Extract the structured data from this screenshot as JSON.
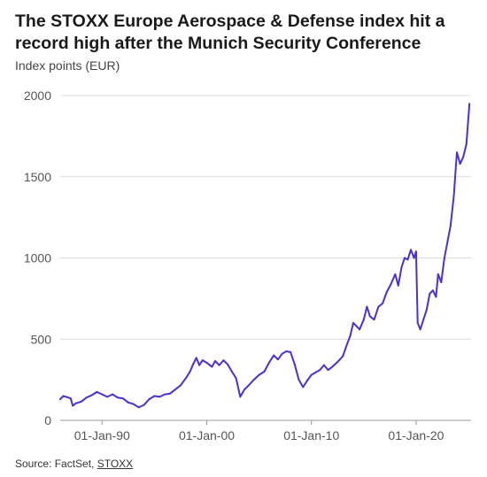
{
  "chart_data": {
    "type": "line",
    "title": "The STOXX Europe Aerospace & Defense index hit a record high after the Munich Security Conference",
    "ylabel": "Index points (EUR)",
    "xlabel": "",
    "ylim": [
      0,
      2000
    ],
    "y_ticks": [
      "0",
      "500",
      "1000",
      "1500",
      "2000"
    ],
    "x_ticks": [
      {
        "label": "01-Jan-90",
        "year": 1990
      },
      {
        "label": "01-Jan-00",
        "year": 2000
      },
      {
        "label": "01-Jan-10",
        "year": 2010
      },
      {
        "label": "01-Jan-20",
        "year": 2020
      }
    ],
    "grid": "horizontal",
    "line_color": "#4a30d6",
    "series": [
      {
        "points": [
          [
            1986.0,
            130
          ],
          [
            1986.3,
            150
          ],
          [
            1986.7,
            142
          ],
          [
            1987.0,
            135
          ],
          [
            1987.2,
            90
          ],
          [
            1987.5,
            105
          ],
          [
            1988.0,
            115
          ],
          [
            1988.5,
            140
          ],
          [
            1989.0,
            155
          ],
          [
            1989.5,
            175
          ],
          [
            1990.0,
            160
          ],
          [
            1990.5,
            145
          ],
          [
            1991.0,
            160
          ],
          [
            1991.5,
            140
          ],
          [
            1992.0,
            135
          ],
          [
            1992.5,
            110
          ],
          [
            1993.0,
            100
          ],
          [
            1993.5,
            80
          ],
          [
            1994.0,
            95
          ],
          [
            1994.5,
            130
          ],
          [
            1995.0,
            150
          ],
          [
            1995.5,
            145
          ],
          [
            1996.0,
            160
          ],
          [
            1996.5,
            165
          ],
          [
            1997.0,
            190
          ],
          [
            1997.5,
            215
          ],
          [
            1998.0,
            260
          ],
          [
            1998.4,
            300
          ],
          [
            1998.7,
            345
          ],
          [
            1999.0,
            385
          ],
          [
            1999.3,
            340
          ],
          [
            1999.6,
            370
          ],
          [
            2000.0,
            355
          ],
          [
            2000.5,
            330
          ],
          [
            2000.8,
            365
          ],
          [
            2001.2,
            340
          ],
          [
            2001.6,
            370
          ],
          [
            2002.0,
            345
          ],
          [
            2002.4,
            300
          ],
          [
            2002.8,
            260
          ],
          [
            2003.2,
            145
          ],
          [
            2003.6,
            190
          ],
          [
            2004.0,
            215
          ],
          [
            2004.5,
            250
          ],
          [
            2005.0,
            280
          ],
          [
            2005.5,
            300
          ],
          [
            2006.0,
            360
          ],
          [
            2006.4,
            400
          ],
          [
            2006.8,
            375
          ],
          [
            2007.2,
            410
          ],
          [
            2007.6,
            425
          ],
          [
            2008.0,
            420
          ],
          [
            2008.4,
            345
          ],
          [
            2008.8,
            250
          ],
          [
            2009.2,
            205
          ],
          [
            2009.6,
            245
          ],
          [
            2010.0,
            280
          ],
          [
            2010.4,
            295
          ],
          [
            2010.8,
            310
          ],
          [
            2011.2,
            340
          ],
          [
            2011.6,
            310
          ],
          [
            2012.0,
            330
          ],
          [
            2012.5,
            360
          ],
          [
            2013.0,
            395
          ],
          [
            2013.3,
            450
          ],
          [
            2013.7,
            520
          ],
          [
            2014.0,
            600
          ],
          [
            2014.3,
            580
          ],
          [
            2014.6,
            560
          ],
          [
            2015.0,
            620
          ],
          [
            2015.3,
            700
          ],
          [
            2015.6,
            640
          ],
          [
            2016.0,
            620
          ],
          [
            2016.4,
            700
          ],
          [
            2016.8,
            720
          ],
          [
            2017.2,
            790
          ],
          [
            2017.6,
            840
          ],
          [
            2018.0,
            900
          ],
          [
            2018.3,
            830
          ],
          [
            2018.6,
            940
          ],
          [
            2018.9,
            1000
          ],
          [
            2019.2,
            990
          ],
          [
            2019.5,
            1050
          ],
          [
            2019.8,
            1000
          ],
          [
            2020.0,
            1040
          ],
          [
            2020.15,
            600
          ],
          [
            2020.4,
            560
          ],
          [
            2020.7,
            620
          ],
          [
            2021.0,
            680
          ],
          [
            2021.3,
            780
          ],
          [
            2021.6,
            800
          ],
          [
            2021.9,
            760
          ],
          [
            2022.1,
            900
          ],
          [
            2022.4,
            850
          ],
          [
            2022.7,
            1000
          ],
          [
            2023.0,
            1100
          ],
          [
            2023.3,
            1200
          ],
          [
            2023.6,
            1380
          ],
          [
            2023.9,
            1650
          ],
          [
            2024.2,
            1580
          ],
          [
            2024.5,
            1620
          ],
          [
            2024.8,
            1700
          ],
          [
            2025.1,
            1950
          ]
        ]
      }
    ]
  },
  "source": {
    "prefix": "Source: FactSet, ",
    "link": "STOXX"
  }
}
